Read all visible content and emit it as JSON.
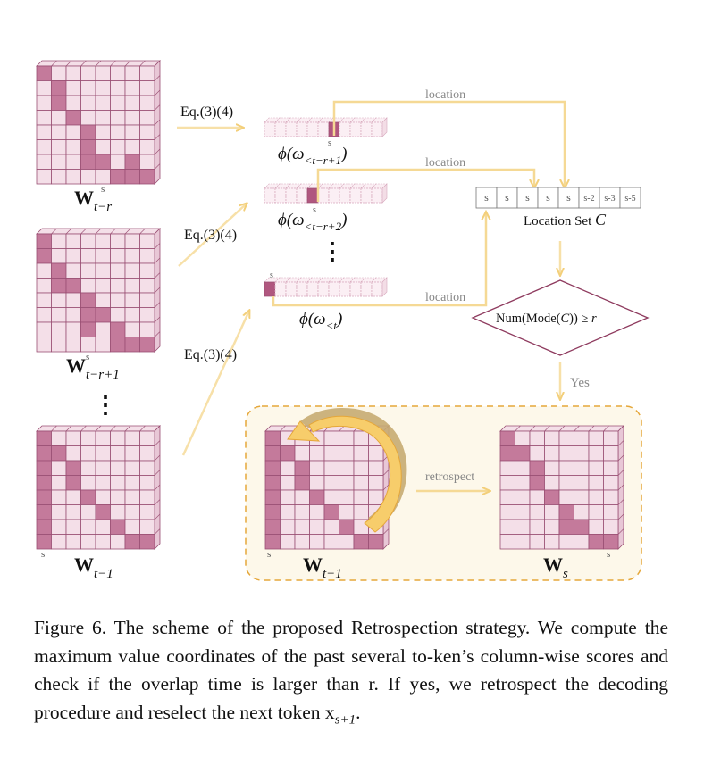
{
  "diagram": {
    "matrices": {
      "w_t_minus_r": {
        "label_main": "W",
        "label_sup": "s",
        "label_sub": "t−r"
      },
      "w_t_minus_r_plus_1": {
        "label_main": "W",
        "label_sup": "s",
        "label_sub": "t−r+1"
      },
      "w_t_minus_1": {
        "label_main": "W",
        "label_sub": "t−1",
        "marker": "s"
      },
      "w_t_minus_1_retro": {
        "label_main": "W",
        "label_sub": "t−1",
        "marker": "s"
      },
      "w_s": {
        "label_main": "W",
        "label_sub": "s",
        "marker": "s"
      }
    },
    "ellipsis": "⋮",
    "eq_labels": [
      "Eq.(3)(4)",
      "Eq.(3)(4)",
      "Eq.(3)(4)"
    ],
    "phi_vectors": [
      {
        "label": "ϕ(ω",
        "sub": "<t−r+1",
        "close": ")",
        "marker": "s"
      },
      {
        "label": "ϕ(ω",
        "sub": "<t−r+2",
        "close": ")",
        "marker": "s"
      },
      {
        "label": "ϕ(ω",
        "sub": "<t",
        "close": ")",
        "marker": "s"
      }
    ],
    "location_labels": [
      "location",
      "location",
      "location"
    ],
    "location_set": {
      "cells": [
        "s",
        "s",
        "s",
        "s",
        "s",
        "s-2",
        "s-3",
        "s-5"
      ],
      "caption": "Location Set ",
      "caption_symbol": "C"
    },
    "decision": {
      "text": "Num(Mode(",
      "symbol": "C",
      "text_end": ")) ≥ ",
      "r": "r"
    },
    "yes_label": "Yes",
    "retrospect_label": "retrospect",
    "colors": {
      "cell_dark": "#c47a9b",
      "cell_light": "#f4dfe8",
      "grid_line": "#9a4f73",
      "vector_highlight": "#b0577f",
      "arrow": "#f7e0a8",
      "flow_line": "#f5d995",
      "box_border": "#e5a73a",
      "box_fill": "#fdf8ea",
      "curved_arrow_front": "#f7cd6b",
      "curved_arrow_back": "#c7ab72",
      "diamond_border": "#8e3a5e"
    }
  },
  "caption": {
    "paragraph": "Figure 6. The scheme of the proposed Retrospection strategy. We compute the maximum value coordinates of the past several to-ken’s column-wise scores and check if the overlap time is larger than r. If yes, we retrospect the decoding procedure and reselect the next token x",
    "token_sub": "s+1",
    "end": "."
  }
}
